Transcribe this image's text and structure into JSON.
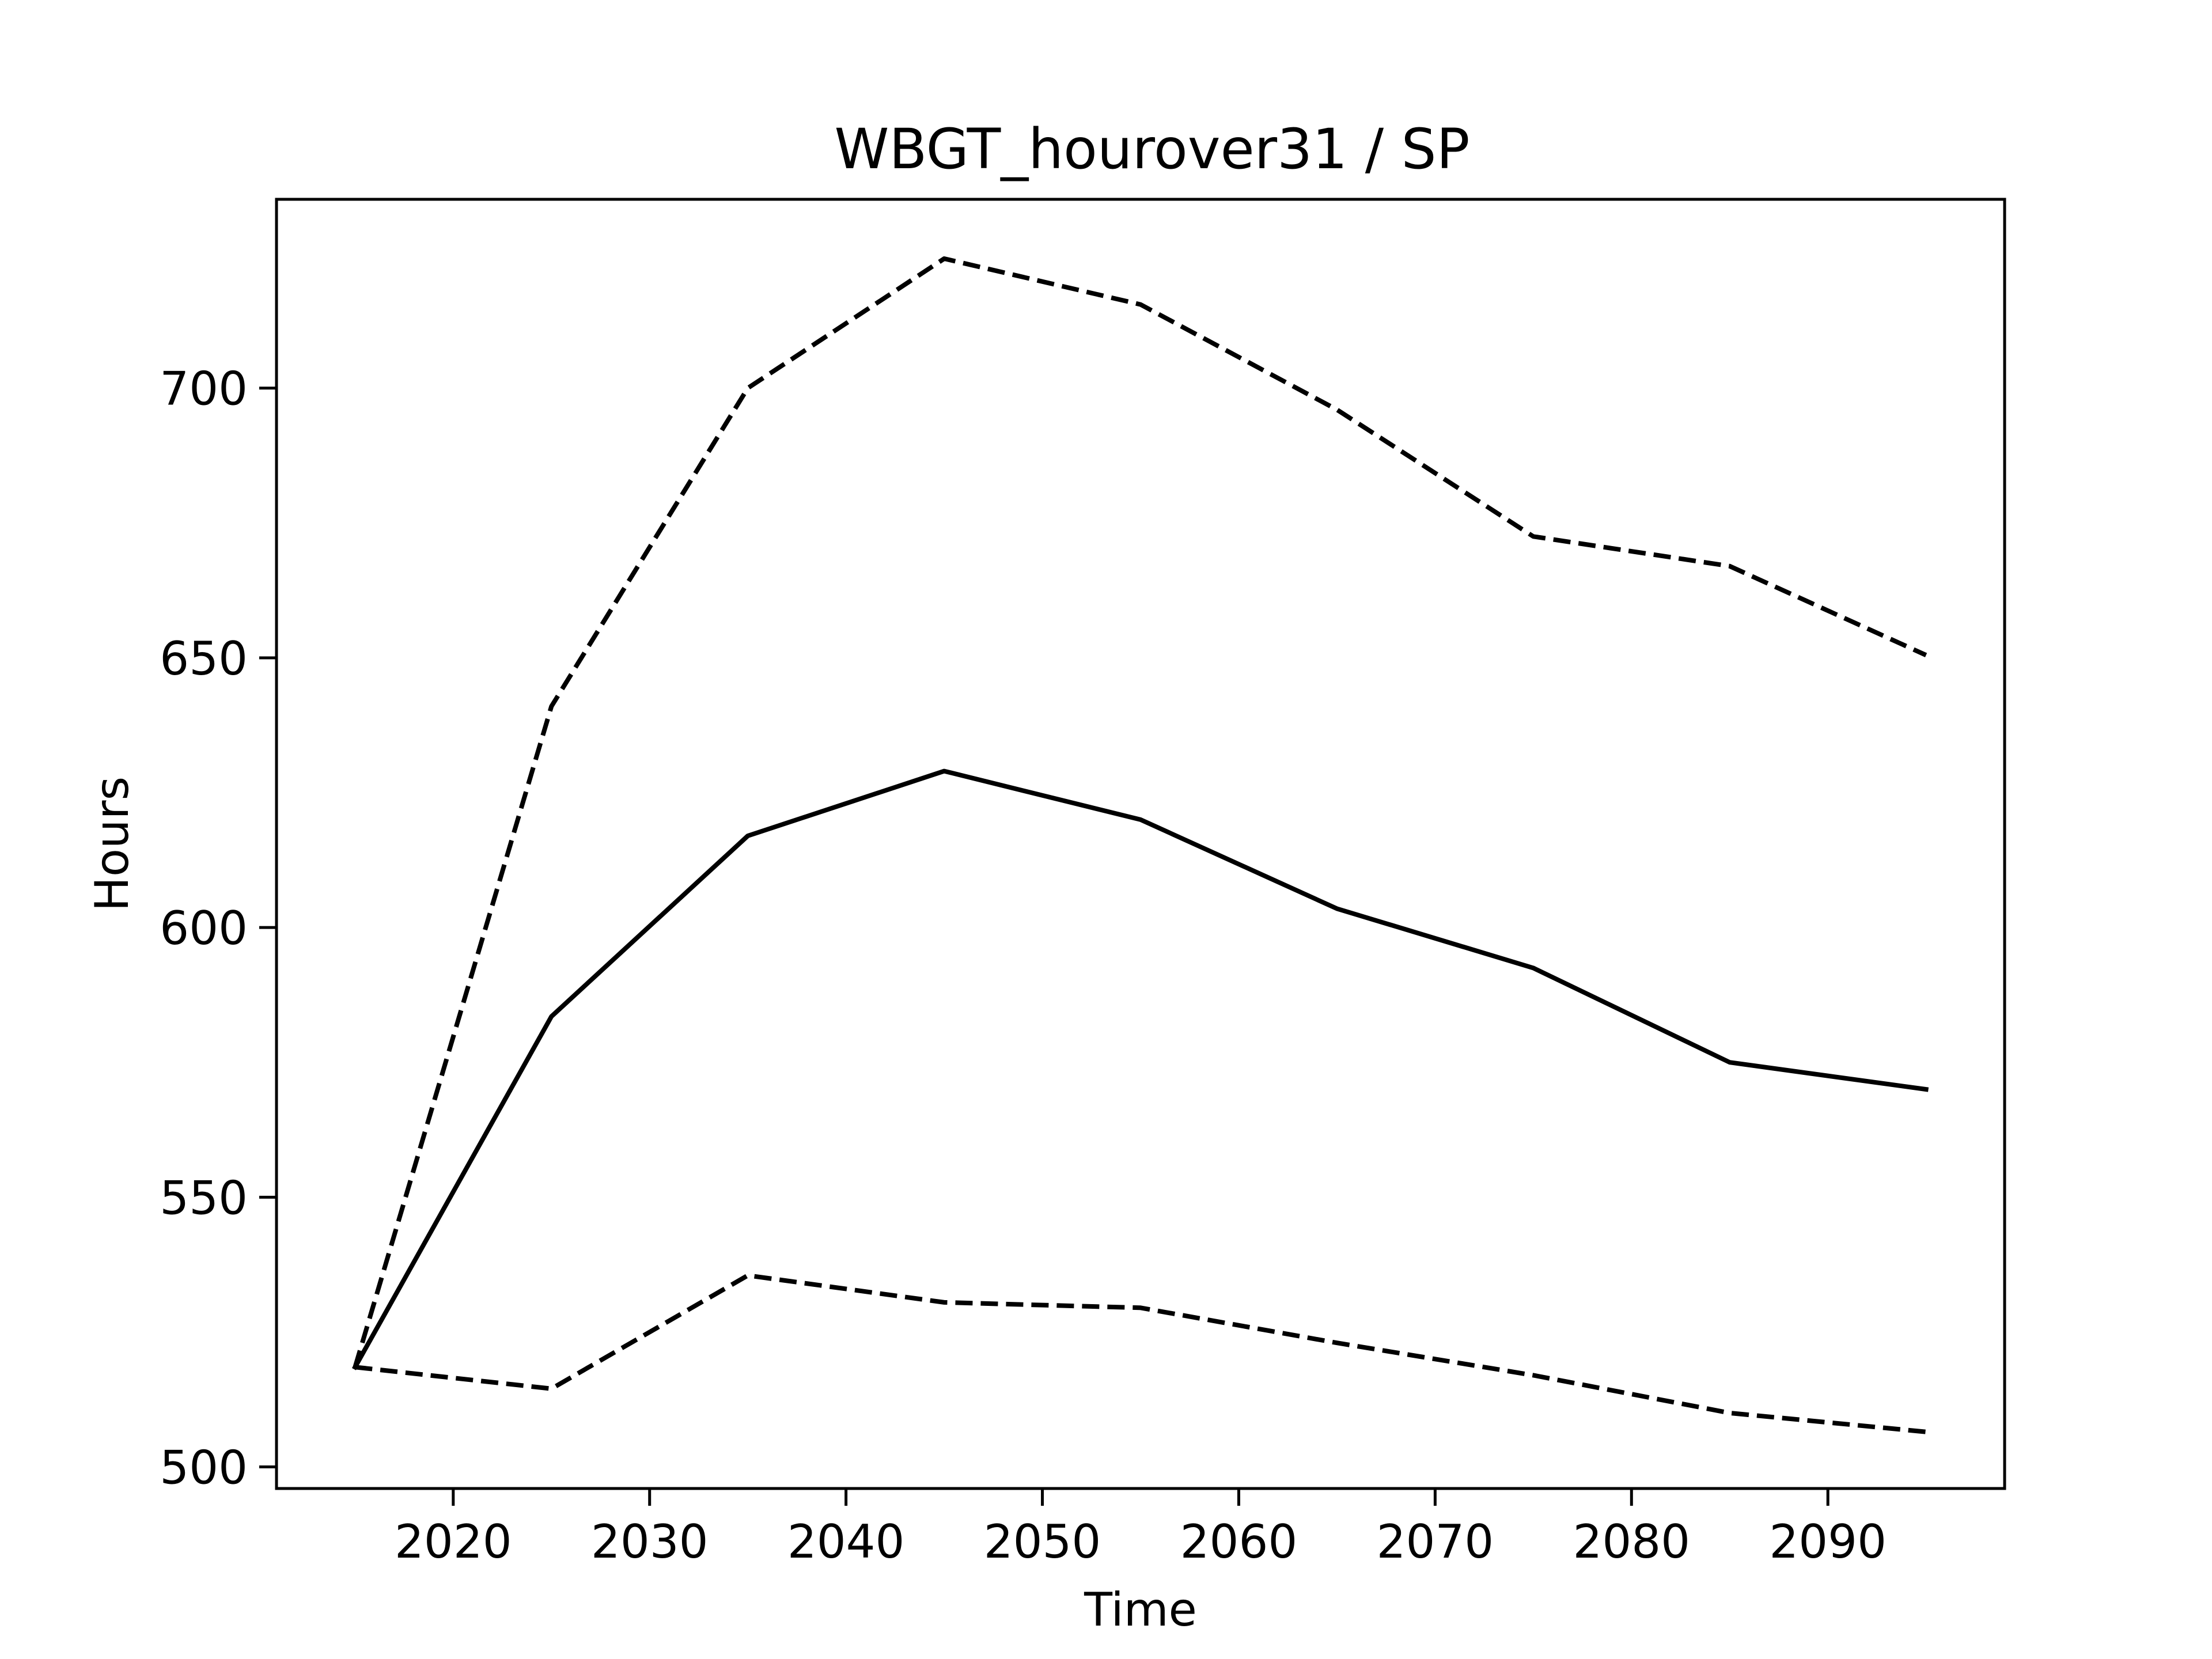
{
  "chart_data": {
    "type": "line",
    "title": "WBGT_hourover31 / SP",
    "xlabel": "Time",
    "ylabel": "Hours",
    "xlim": [
      2011,
      2099
    ],
    "ylim": [
      496,
      735
    ],
    "xticks": [
      2020,
      2030,
      2040,
      2050,
      2060,
      2070,
      2080,
      2090
    ],
    "yticks": [
      500,
      550,
      600,
      650,
      700
    ],
    "grid": false,
    "x": [
      2015,
      2025,
      2035,
      2045,
      2055,
      2065,
      2075,
      2085,
      2095
    ],
    "series": [
      {
        "style": "solid",
        "color": "#000000",
        "values": [
          518.5,
          583.5,
          617,
          629,
          620,
          603.5,
          592.5,
          575,
          570
        ]
      },
      {
        "style": "dashed",
        "color": "#000000",
        "values": [
          518.5,
          641,
          700,
          724,
          715.5,
          696,
          672.5,
          667,
          650.5
        ]
      },
      {
        "style": "dashed",
        "color": "#000000",
        "values": [
          518.5,
          514.5,
          535.5,
          530.5,
          529.5,
          523,
          517,
          510,
          506.5
        ]
      }
    ]
  }
}
